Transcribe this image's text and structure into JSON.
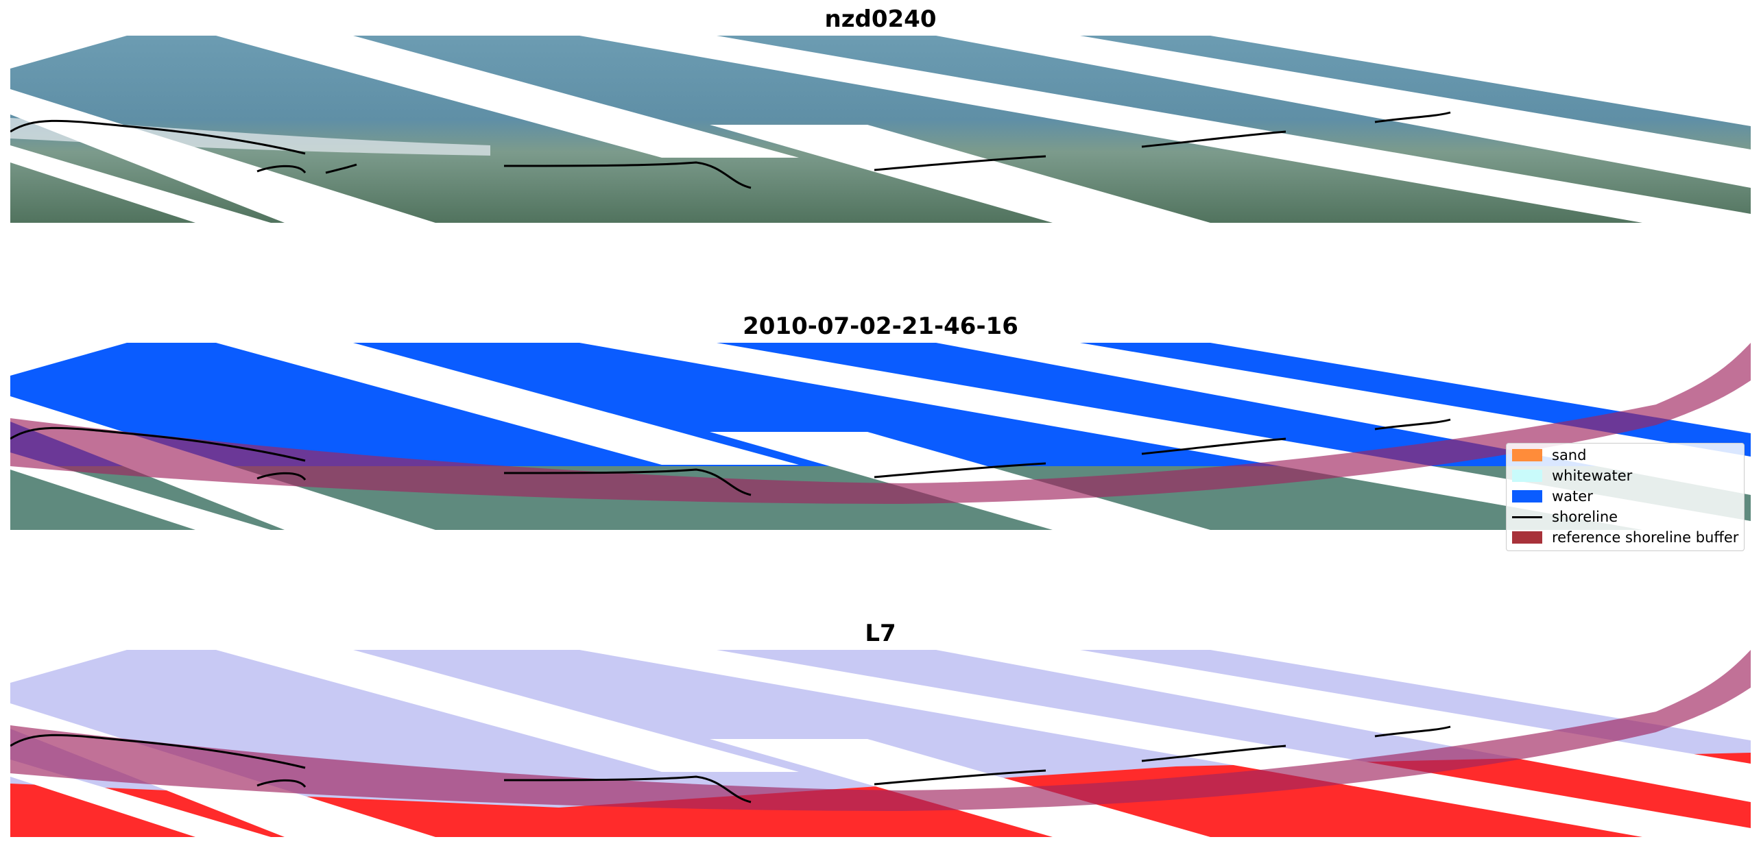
{
  "panels": [
    {
      "title": "nzd0240",
      "kind": "rgb"
    },
    {
      "title": "2010-07-02-21-46-16",
      "kind": "classified"
    },
    {
      "title": "L7",
      "kind": "mndwi"
    }
  ],
  "legend": {
    "items": [
      {
        "label": "sand",
        "color": "#ff8c3a",
        "icon": "square-swatch"
      },
      {
        "label": "whitewater",
        "color": "#c9fbfb",
        "icon": "square-swatch"
      },
      {
        "label": "water",
        "color": "#0a5cff",
        "icon": "square-swatch"
      },
      {
        "label": "shoreline",
        "color": "#000000",
        "icon": "line-swatch"
      },
      {
        "label": "reference shoreline buffer",
        "color": "#a8323a",
        "icon": "square-swatch"
      }
    ]
  },
  "colors": {
    "rgb_water": "#5b8ca8",
    "rgb_land": "#62866b",
    "class_water": "#0a5cff",
    "buffer": "#a0255f",
    "mndwi_water": "#c8c9f4",
    "mndwi_land": "#ff2b2b"
  }
}
